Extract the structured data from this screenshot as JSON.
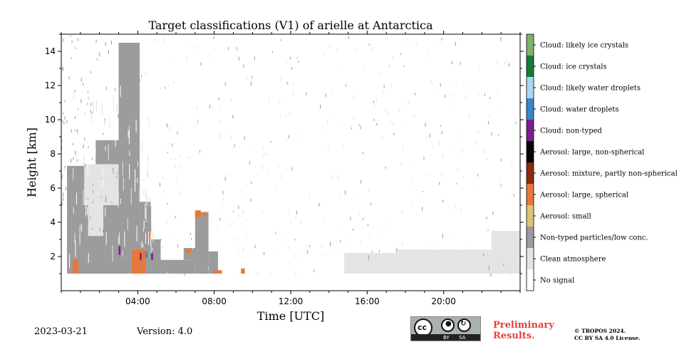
{
  "chart_data": {
    "type": "heatmap",
    "title": "Target classifications (V1) of arielle at Antarctica",
    "xlabel": "Time [UTC]",
    "ylabel": "Height [km]",
    "xlim": [
      0,
      24
    ],
    "ylim": [
      0,
      15
    ],
    "x_tick_values": [
      4,
      8,
      12,
      16,
      20
    ],
    "x_tick_labels": [
      "04:00",
      "08:00",
      "12:00",
      "16:00",
      "20:00"
    ],
    "y_tick_values": [
      2,
      4,
      6,
      8,
      10,
      12,
      14
    ],
    "y_tick_labels": [
      "2",
      "4",
      "6",
      "8",
      "10",
      "12",
      "14"
    ],
    "legend": {
      "placement": "right colorbar",
      "classes": [
        {
          "label": "Cloud: likely ice crystals",
          "color": "#7fb26a"
        },
        {
          "label": "Cloud: ice crystals",
          "color": "#187a3a"
        },
        {
          "label": "Cloud: likely water droplets",
          "color": "#a8d7f4"
        },
        {
          "label": "Cloud: water droplets",
          "color": "#3a87c8"
        },
        {
          "label": "Cloud: non-typed",
          "color": "#7b1f8c"
        },
        {
          "label": "Aerosol: large, non-spherical",
          "color": "#050505"
        },
        {
          "label": "Aerosol: mixture, partly non-spherical",
          "color": "#8a2a0e"
        },
        {
          "label": "Aerosol: large, spherical",
          "color": "#e8773b"
        },
        {
          "label": "Aerosol: small",
          "color": "#dcc377"
        },
        {
          "label": "Non-typed particles/low conc.",
          "color": "#9c9c9c"
        },
        {
          "label": "Clean atmosphere",
          "color": "#e4e4e4"
        },
        {
          "label": "No signal",
          "color": "#ffffff"
        }
      ]
    },
    "regions": [
      {
        "class": "Non-typed particles/low conc.",
        "x": [
          0.3,
          5.2
        ],
        "y": [
          1,
          3.0
        ]
      },
      {
        "class": "Non-typed particles/low conc.",
        "x": [
          0.3,
          2.0
        ],
        "y": [
          3.0,
          7.3
        ]
      },
      {
        "class": "Non-typed particles/low conc.",
        "x": [
          2.0,
          3.2
        ],
        "y": [
          3.0,
          5.0
        ]
      },
      {
        "class": "Non-typed particles/low conc.",
        "x": [
          1.8,
          3.0
        ],
        "y": [
          5.0,
          8.8
        ]
      },
      {
        "class": "Non-typed particles/low conc.",
        "x": [
          3.0,
          4.1
        ],
        "y": [
          3.0,
          14.5
        ]
      },
      {
        "class": "Non-typed particles/low conc.",
        "x": [
          4.1,
          4.7
        ],
        "y": [
          2.0,
          5.2
        ]
      },
      {
        "class": "Non-typed particles/low conc.",
        "x": [
          5.2,
          7.0
        ],
        "y": [
          1,
          1.8
        ]
      },
      {
        "class": "Non-typed particles/low conc.",
        "x": [
          6.4,
          7.3
        ],
        "y": [
          1.8,
          2.5
        ]
      },
      {
        "class": "Non-typed particles/low conc.",
        "x": [
          7.0,
          7.7
        ],
        "y": [
          1,
          4.6
        ]
      },
      {
        "class": "Non-typed particles/low conc.",
        "x": [
          7.7,
          8.2
        ],
        "y": [
          1,
          2.3
        ]
      },
      {
        "class": "Clean atmosphere",
        "x": [
          1.2,
          3.0
        ],
        "y": [
          5.0,
          7.4
        ]
      },
      {
        "class": "Clean atmosphere",
        "x": [
          1.4,
          2.2
        ],
        "y": [
          3.2,
          5.0
        ]
      },
      {
        "class": "Clean atmosphere",
        "x": [
          14.8,
          17.5
        ],
        "y": [
          1,
          2.2
        ]
      },
      {
        "class": "Clean atmosphere",
        "x": [
          17.5,
          22.5
        ],
        "y": [
          1,
          2.4
        ]
      },
      {
        "class": "Clean atmosphere",
        "x": [
          22.5,
          24
        ],
        "y": [
          1,
          3.5
        ]
      },
      {
        "class": "Aerosol: large, spherical",
        "x": [
          0.6,
          0.9
        ],
        "y": [
          1.0,
          1.8
        ]
      },
      {
        "class": "Aerosol: large, spherical",
        "x": [
          3.7,
          4.4
        ],
        "y": [
          1,
          2.4
        ]
      },
      {
        "class": "Aerosol: large, spherical",
        "x": [
          4.5,
          4.7
        ],
        "y": [
          3.0,
          3.4
        ]
      },
      {
        "class": "Aerosol: large, spherical",
        "x": [
          6.5,
          6.8
        ],
        "y": [
          2.2,
          2.4
        ]
      },
      {
        "class": "Aerosol: large, spherical",
        "x": [
          7.0,
          7.3
        ],
        "y": [
          4.3,
          4.7
        ]
      },
      {
        "class": "Aerosol: large, spherical",
        "x": [
          7.4,
          7.6
        ],
        "y": [
          4.4,
          4.6
        ]
      },
      {
        "class": "Aerosol: large, spherical",
        "x": [
          9.4,
          9.6
        ],
        "y": [
          1.0,
          1.3
        ]
      },
      {
        "class": "Aerosol: large, spherical",
        "x": [
          8.0,
          8.4
        ],
        "y": [
          1.0,
          1.2
        ]
      },
      {
        "class": "Cloud: non-typed",
        "x": [
          3.0,
          3.1
        ],
        "y": [
          2.1,
          2.6
        ]
      },
      {
        "class": "Cloud: non-typed",
        "x": [
          4.1,
          4.2
        ],
        "y": [
          1.8,
          2.2
        ]
      },
      {
        "class": "Cloud: water droplets",
        "x": [
          4.4,
          4.5
        ],
        "y": [
          1.9,
          2.3
        ]
      },
      {
        "class": "Cloud: non-typed",
        "x": [
          4.7,
          4.8
        ],
        "y": [
          1.8,
          2.2
        ]
      }
    ]
  },
  "footer": {
    "date": "2023-03-21",
    "version": "Version: 4.0",
    "preliminary_line1": "Preliminary",
    "preliminary_line2": "Results.",
    "copyright_line1": "© TROPOS 2024.",
    "copyright_line2": "CC BY SA 4.0 License.",
    "cc_label": "cc",
    "by_label": "BY",
    "sa_label": "SA"
  }
}
